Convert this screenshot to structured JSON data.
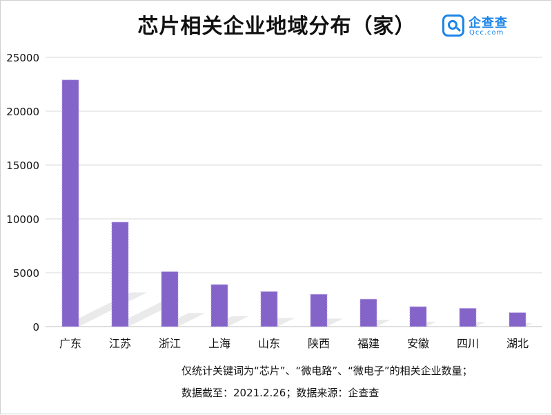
{
  "chart_data": {
    "type": "bar",
    "title": "芯片相关企业地域分布（家）",
    "categories": [
      "广东",
      "江苏",
      "浙江",
      "上海",
      "山东",
      "陕西",
      "福建",
      "安徽",
      "四川",
      "湖北"
    ],
    "series": [
      {
        "values": [
          22900,
          9700,
          5100,
          3900,
          3250,
          3000,
          2550,
          1850,
          1700,
          1300
        ]
      }
    ],
    "ylim": [
      0,
      25000
    ],
    "yticks": [
      0,
      5000,
      10000,
      15000,
      20000,
      25000
    ],
    "grid": true,
    "bar_color": "#8464c8",
    "legend": "none"
  },
  "logo": {
    "name": "企查查",
    "url": "Qcc.com",
    "color": "#1b84e8"
  },
  "notes": {
    "line1": "仅统计关键词为“芯片”、“微电路”、“微电子”的相关企业数量；",
    "line2": "数据截至：2021.2.26；数据来源：企查查"
  }
}
